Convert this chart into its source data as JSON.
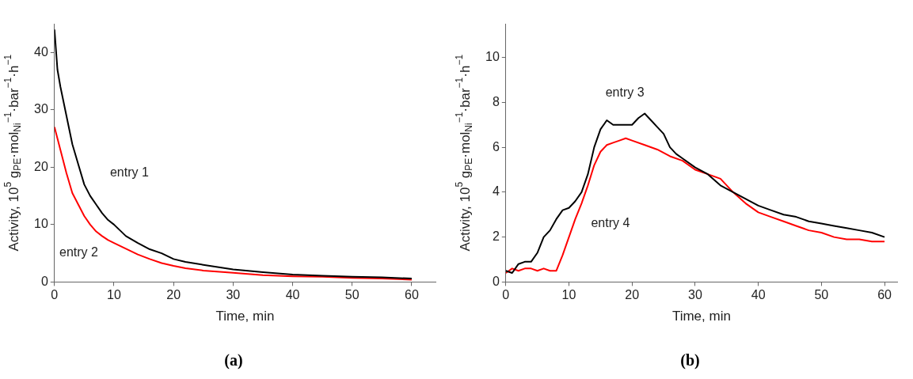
{
  "chart_data": [
    {
      "type": "line",
      "title": "(a)",
      "xlabel": "Time, min",
      "ylabel": "Activity, 10$^{5}$ g$_{PE}$·mol$_{Ni}$$^{−1}$·bar$^{−1}$·h$^{−1}$",
      "xlim": [
        0,
        64
      ],
      "ylim": [
        0,
        45
      ],
      "xticks": [
        0,
        10,
        20,
        30,
        40,
        50,
        60
      ],
      "yticks": [
        0,
        10,
        20,
        30,
        40
      ],
      "grid": false,
      "legend": false,
      "x": [
        0,
        0.5,
        1,
        2,
        3,
        4,
        5,
        6,
        7,
        8,
        9,
        10,
        12,
        14,
        16,
        18,
        20,
        22,
        25,
        30,
        35,
        40,
        45,
        50,
        55,
        60
      ],
      "series": [
        {
          "name": "entry 1",
          "color": "#000000",
          "values": [
            44,
            37,
            34,
            29,
            24,
            20.5,
            17,
            15,
            13.5,
            12,
            10.8,
            10,
            8,
            6.8,
            5.7,
            5,
            4,
            3.5,
            3,
            2.2,
            1.7,
            1.3,
            1.1,
            0.9,
            0.8,
            0.6
          ]
        },
        {
          "name": "entry 2",
          "color": "#ff0000",
          "values": [
            27,
            25,
            23,
            19,
            15.5,
            13.5,
            11.5,
            10,
            8.8,
            8,
            7.3,
            6.8,
            5.8,
            4.8,
            4,
            3.3,
            2.8,
            2.4,
            2,
            1.6,
            1.2,
            1,
            0.9,
            0.7,
            0.6,
            0.4
          ]
        }
      ]
    },
    {
      "type": "line",
      "title": "(b)",
      "xlabel": "Time, min",
      "ylabel": "Activity, 10$^{5}$ g$_{PE}$·mol$_{Ni}$$^{−1}$·bar$^{−1}$·h$^{−1}$",
      "xlim": [
        0,
        62
      ],
      "ylim": [
        0,
        11.5
      ],
      "xticks": [
        0,
        10,
        20,
        30,
        40,
        50,
        60
      ],
      "yticks": [
        0,
        2,
        4,
        6,
        8,
        10
      ],
      "grid": false,
      "legend": false,
      "series": [
        {
          "name": "entry 3",
          "color": "#000000",
          "x": [
            0,
            1,
            2,
            3,
            4,
            5,
            6,
            7,
            8,
            9,
            10,
            11,
            12,
            13,
            14,
            15,
            16,
            17,
            18,
            19,
            20,
            21,
            22,
            23,
            24,
            25,
            26,
            27,
            28,
            30,
            32,
            34,
            36,
            38,
            40,
            42,
            44,
            46,
            48,
            50,
            52,
            54,
            56,
            58,
            60
          ],
          "values": [
            0.5,
            0.4,
            0.8,
            0.9,
            0.9,
            1.3,
            2,
            2.3,
            2.8,
            3.2,
            3.3,
            3.6,
            4,
            4.8,
            6,
            6.8,
            7.2,
            7,
            7,
            7,
            7,
            7.3,
            7.5,
            7.2,
            6.9,
            6.6,
            6,
            5.7,
            5.5,
            5.1,
            4.8,
            4.3,
            4,
            3.7,
            3.4,
            3.2,
            3,
            2.9,
            2.7,
            2.6,
            2.5,
            2.4,
            2.3,
            2.2,
            2
          ]
        },
        {
          "name": "entry 4",
          "color": "#ff0000",
          "x": [
            0,
            1,
            2,
            3,
            4,
            5,
            6,
            7,
            8,
            9,
            10,
            11,
            12,
            13,
            14,
            15,
            16,
            17,
            18,
            19,
            20,
            22,
            24,
            26,
            28,
            30,
            32,
            34,
            36,
            38,
            40,
            42,
            44,
            46,
            48,
            50,
            52,
            54,
            56,
            58,
            60
          ],
          "values": [
            0.4,
            0.6,
            0.5,
            0.6,
            0.6,
            0.5,
            0.6,
            0.5,
            0.5,
            1.2,
            2,
            2.8,
            3.5,
            4.3,
            5.2,
            5.8,
            6.1,
            6.2,
            6.3,
            6.4,
            6.3,
            6.1,
            5.9,
            5.6,
            5.4,
            5,
            4.8,
            4.6,
            4,
            3.5,
            3.1,
            2.9,
            2.7,
            2.5,
            2.3,
            2.2,
            2,
            1.9,
            1.9,
            1.8,
            1.8
          ]
        }
      ]
    }
  ]
}
